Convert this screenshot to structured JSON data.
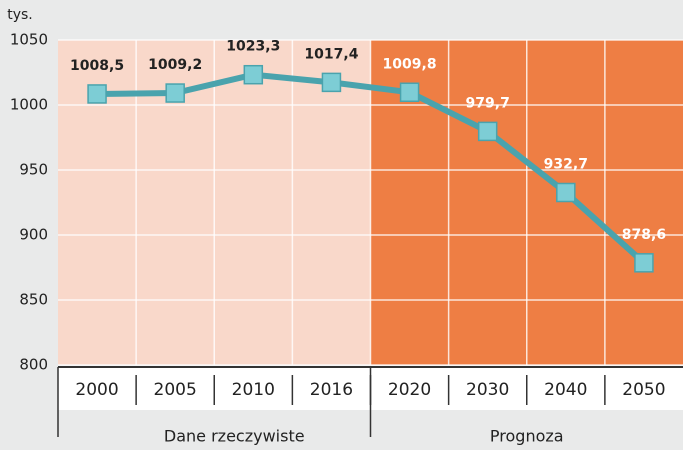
{
  "chart_data": {
    "type": "line",
    "y_label": "tys.",
    "categories": [
      "2000",
      "2005",
      "2010",
      "2016",
      "2020",
      "2030",
      "2040",
      "2050"
    ],
    "values": [
      1008.5,
      1009.2,
      1023.3,
      1017.4,
      1009.8,
      979.7,
      932.7,
      878.6
    ],
    "value_labels": [
      "1008,5",
      "1009,2",
      "1023,3",
      "1017,4",
      "1009,8",
      "979,7",
      "932,7",
      "878,6"
    ],
    "color": "#4aa3ad",
    "ylim": [
      800,
      1050
    ],
    "yticks": [
      800,
      850,
      900,
      950,
      1000,
      1050
    ],
    "grid": true,
    "annotations": [
      "Dane rzeczywiste",
      "Prognoza"
    ]
  }
}
